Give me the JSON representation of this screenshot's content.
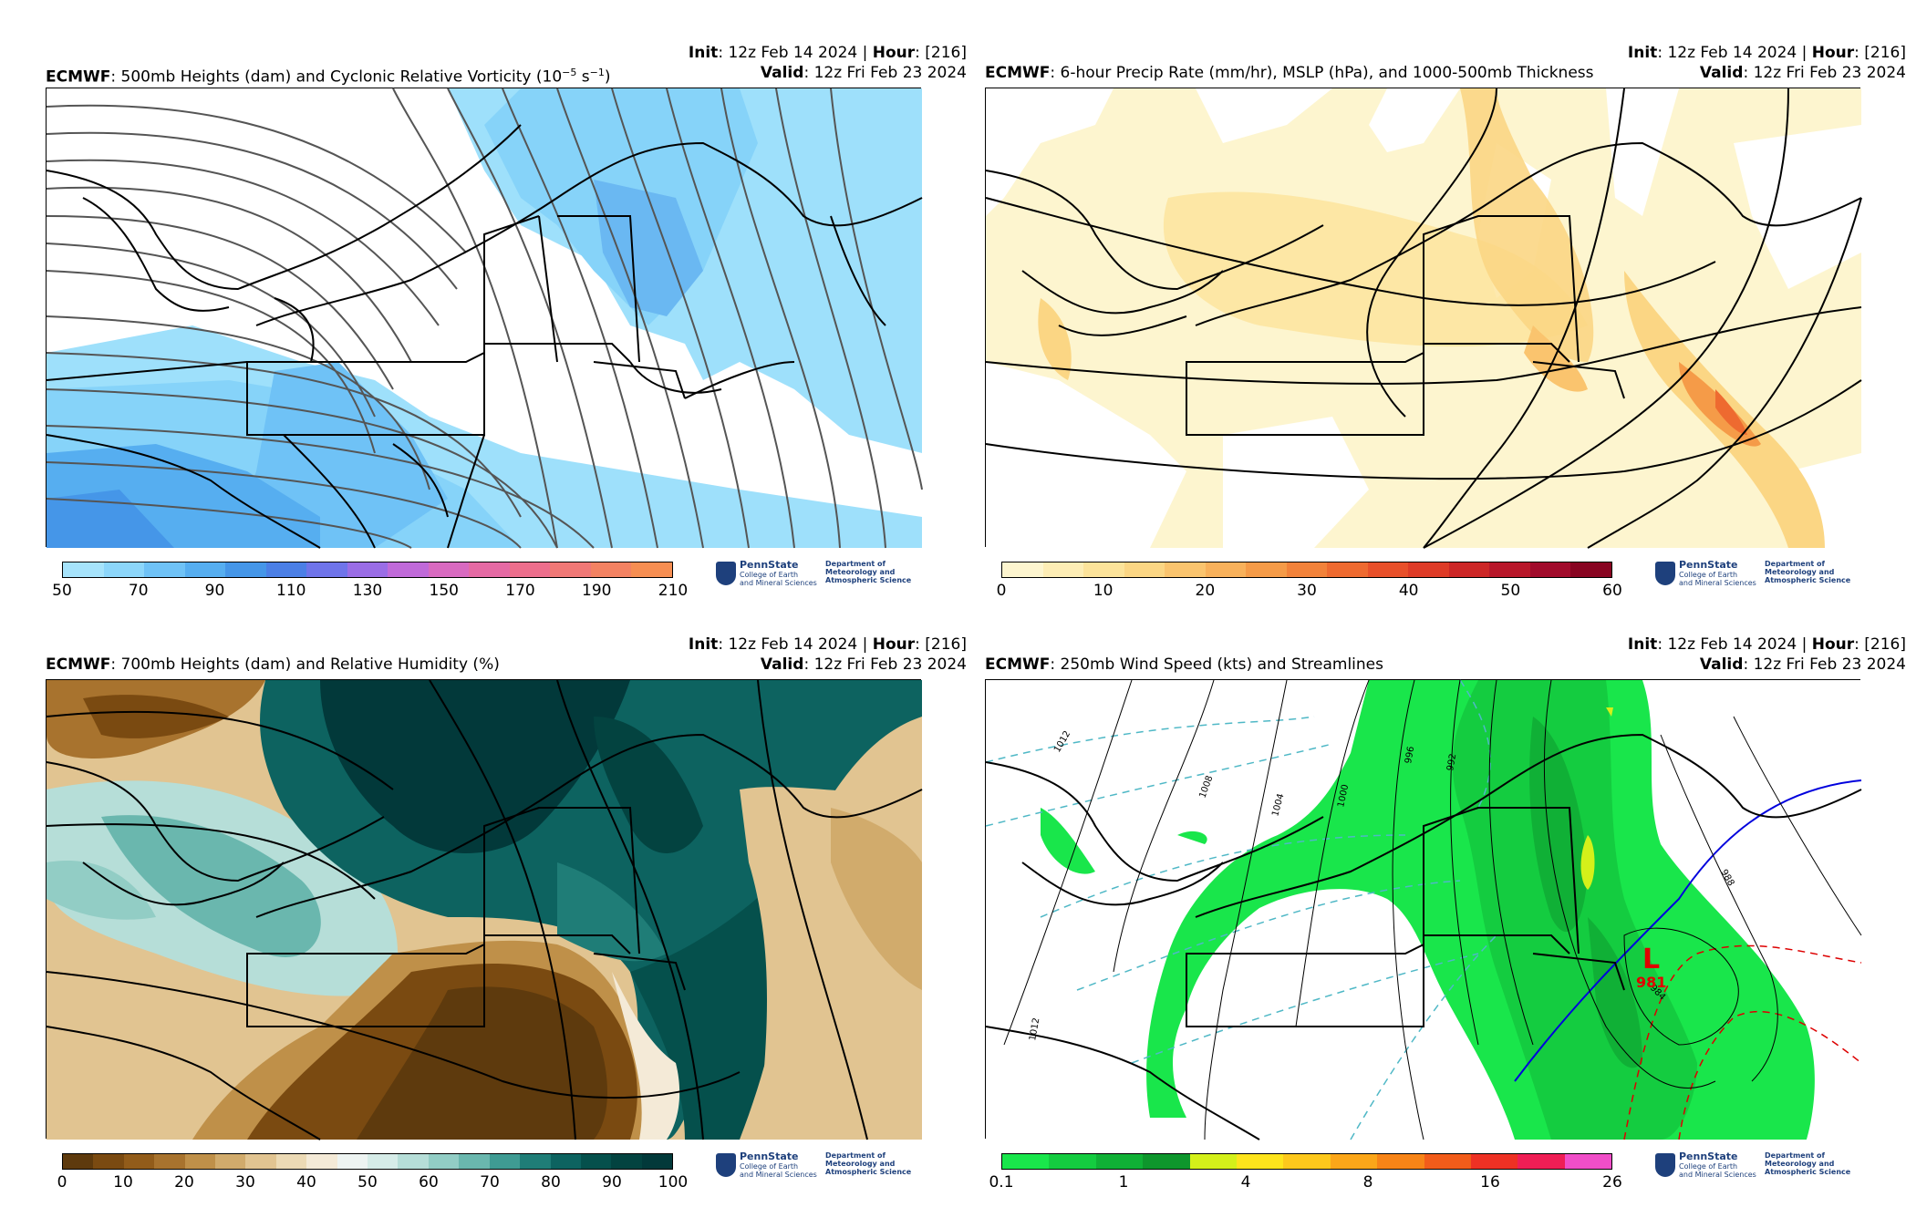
{
  "panels": [
    {
      "id": "vorticity",
      "init_prefix": "Init",
      "init_value": ": 12z Feb 14 2024 | ",
      "hour_prefix": "Hour",
      "hour_value": ": [216]",
      "model": "ECMWF",
      "title_rest": ": 500mb Heights (dam) and Cyclonic Relative Vorticity (10",
      "title_sup": "−5",
      "title_end": " s",
      "title_sup2": "−1",
      "title_close": ")",
      "valid_prefix": "Valid",
      "valid_value": ": 12z Fri Feb 23 2024",
      "colorbar": {
        "colors": [
          "#a6e3fb",
          "#8cd6fa",
          "#6fc2f6",
          "#56aef0",
          "#4596e8",
          "#4b7fe6",
          "#6f74ea",
          "#9a6de6",
          "#c06ad9",
          "#d86ac0",
          "#e56aa4",
          "#ec6e8c",
          "#f07876",
          "#f38262",
          "#f68e52"
        ],
        "labels": [
          "50",
          "70",
          "90",
          "110",
          "130",
          "150",
          "170",
          "190",
          "210"
        ]
      }
    },
    {
      "id": "precip",
      "init_prefix": "Init",
      "init_value": ": 12z Feb 14 2024 | ",
      "hour_prefix": "Hour",
      "hour_value": ": [216]",
      "model": "ECMWF",
      "title_rest": ": 6-hour Precip Rate (mm/hr), MSLP (hPa), and 1000-500mb Thickness",
      "valid_prefix": "Valid",
      "valid_value": ": 12z Fri Feb 23 2024",
      "colorbar": {
        "colors": [
          "#fdf5cf",
          "#fdedb5",
          "#fce39a",
          "#fbd684",
          "#fac46e",
          "#f8b15b",
          "#f59b48",
          "#f2823a",
          "#ee6a30",
          "#e8502a",
          "#de3b27",
          "#cc2626",
          "#b8172a",
          "#a10b2b",
          "#880421"
        ],
        "labels": [
          "0",
          "10",
          "20",
          "30",
          "40",
          "50",
          "60"
        ]
      }
    },
    {
      "id": "rh",
      "init_prefix": "Init",
      "init_value": ": 12z Feb 14 2024 | ",
      "hour_prefix": "Hour",
      "hour_value": ": [216]",
      "model": "ECMWF",
      "title_rest": ": 700mb Heights (dam) and Relative Humidity (%)",
      "valid_prefix": "Valid",
      "valid_value": ": 12z Fri Feb 23 2024",
      "colorbar": {
        "colors": [
          "#5e3a0d",
          "#7a4a11",
          "#925c1a",
          "#a8732e",
          "#bf9049",
          "#d1ab6c",
          "#e1c491",
          "#ecdab5",
          "#f4ead7",
          "#eef4f2",
          "#d6ece8",
          "#b6ded8",
          "#92cdc5",
          "#6ab7ae",
          "#3f9b93",
          "#1f7d77",
          "#0d6360",
          "#05504c",
          "#034340",
          "#02393a"
        ],
        "labels": [
          "0",
          "10",
          "20",
          "30",
          "40",
          "50",
          "60",
          "70",
          "80",
          "90",
          "100"
        ]
      }
    },
    {
      "id": "wind",
      "init_prefix": "Init",
      "init_value": ": 12z Feb 14 2024 | ",
      "hour_prefix": "Hour",
      "hour_value": ": [216]",
      "model": "ECMWF",
      "title_rest": ": 250mb Wind Speed (kts) and Streamlines",
      "valid_prefix": "Valid",
      "valid_value": ": 12z Fri Feb 23 2024",
      "colorbar": {
        "colors": [
          "#19e64b",
          "#14cc40",
          "#10b036",
          "#0e962c",
          "#d4f01a",
          "#fee41c",
          "#fdc81c",
          "#fba619",
          "#f78417",
          "#f25c1a",
          "#ee3124",
          "#ef1e55",
          "#f04ec8"
        ],
        "labels": [
          "0.1",
          "1",
          "4",
          "8",
          "16",
          "26"
        ]
      },
      "low": {
        "letter": "L",
        "value": "981"
      },
      "isobar_labels": [
        "1012",
        "1008",
        "1004",
        "1000",
        "996",
        "992",
        "988",
        "984",
        "1012"
      ]
    }
  ],
  "logo": {
    "name": "PennState",
    "college": "College of Earth\nand Mineral Sciences",
    "department": "Department of\nMeteorology and\nAtmospheric Science"
  }
}
